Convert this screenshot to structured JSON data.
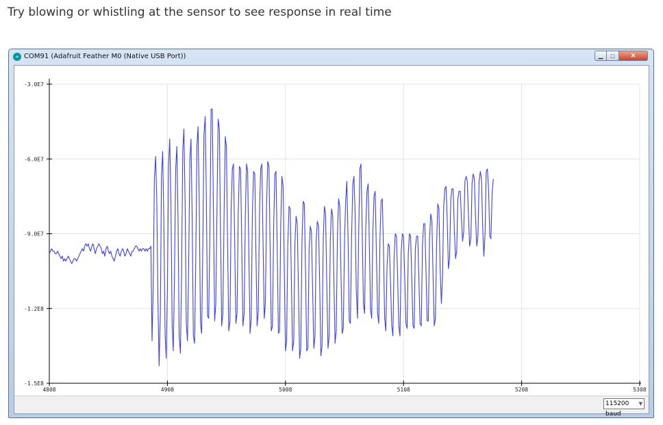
{
  "caption": "Try blowing or whistling at the sensor to see response in real time",
  "window": {
    "title": "COM91 (Adafruit Feather M0 (Native USB Port))",
    "app_icon": "arduino-icon",
    "controls": {
      "minimize": "minimize-icon",
      "maximize": "maximize-icon",
      "close": "close-icon"
    }
  },
  "bottom_bar": {
    "baud": "115200 baud"
  },
  "colors": {
    "line": "#3a3ff0",
    "grid": "#e4e4e4",
    "axis": "#000000"
  },
  "chart_data": {
    "type": "line",
    "title": "",
    "xlabel": "",
    "ylabel": "",
    "xlim": [
      4800,
      5300
    ],
    "ylim": [
      -150000000,
      -30000000
    ],
    "grid": true,
    "y_ticks": [
      {
        "value": -30000000,
        "label": "-3.0E7"
      },
      {
        "value": -60000000,
        "label": "-6.0E7"
      },
      {
        "value": -90000000,
        "label": "-9.0E7"
      },
      {
        "value": -120000000,
        "label": "-1.2E8"
      },
      {
        "value": -150000000,
        "label": "-1.5E8"
      }
    ],
    "x_ticks": [
      {
        "value": 4800,
        "label": "4808"
      },
      {
        "value": 4900,
        "label": "4908"
      },
      {
        "value": 5000,
        "label": "5008"
      },
      {
        "value": 5100,
        "label": "5108"
      },
      {
        "value": 5200,
        "label": "5208"
      },
      {
        "value": 5300,
        "label": "5308"
      }
    ],
    "series": [
      {
        "color": "#3a3ff0",
        "x_start": 4800,
        "x_step": 1,
        "values": [
          -98,
          -97,
          -96,
          -97,
          -97,
          -98,
          -98,
          -97,
          -98,
          -99,
          -100,
          -99,
          -101,
          -100,
          -101,
          -100,
          -99,
          -100,
          -101,
          -102,
          -101,
          -100,
          -100,
          -101,
          -100,
          -99,
          -98,
          -97,
          -96,
          -97,
          -95,
          -94,
          -95,
          -94,
          -96,
          -97,
          -95,
          -94,
          -96,
          -98,
          -96,
          -95,
          -94,
          -95,
          -96,
          -98,
          -97,
          -99,
          -96,
          -95,
          -97,
          -98,
          -97,
          -99,
          -100,
          -101,
          -99,
          -97,
          -96,
          -98,
          -99,
          -97,
          -96,
          -97,
          -99,
          -98,
          -96,
          -97,
          -98,
          -99,
          -97,
          -97,
          -96,
          -95,
          -95,
          -96,
          -97,
          -96,
          -97,
          -96,
          -96,
          -97,
          -96,
          -97,
          -96,
          -96,
          -95,
          -133,
          -112,
          -68,
          -59,
          -76,
          -117,
          -143,
          -122,
          -67,
          -57,
          -84,
          -130,
          -140,
          -113,
          -62,
          -52,
          -78,
          -126,
          -137,
          -108,
          -64,
          -55,
          -83,
          -131,
          -138,
          -107,
          -57,
          -48,
          -78,
          -126,
          -133,
          -104,
          -60,
          -52,
          -84,
          -131,
          -134,
          -101,
          -55,
          -47,
          -78,
          -126,
          -130,
          -96,
          -50,
          -43,
          -76,
          -123,
          -124,
          -89,
          -40,
          -40,
          -80,
          -125,
          -118,
          -80,
          -44,
          -48,
          -90,
          -127,
          -122,
          -82,
          -51,
          -55,
          -94,
          -129,
          -125,
          -80,
          -64,
          -62,
          -94,
          -126,
          -122,
          -82,
          -63,
          -64,
          -95,
          -127,
          -122,
          -83,
          -62,
          -65,
          -99,
          -130,
          -124,
          -82,
          -65,
          -66,
          -98,
          -127,
          -121,
          -81,
          -64,
          -62,
          -92,
          -124,
          -118,
          -79,
          -61,
          -63,
          -96,
          -129,
          -127,
          -87,
          -66,
          -65,
          -95,
          -130,
          -129,
          -86,
          -67,
          -71,
          -105,
          -137,
          -133,
          -94,
          -79,
          -80,
          -108,
          -137,
          -133,
          -94,
          -83,
          -86,
          -113,
          -140,
          -136,
          -93,
          -77,
          -78,
          -105,
          -137,
          -136,
          -97,
          -87,
          -89,
          -113,
          -136,
          -131,
          -93,
          -85,
          -87,
          -111,
          -139,
          -135,
          -92,
          -79,
          -82,
          -110,
          -136,
          -131,
          -92,
          -80,
          -83,
          -108,
          -134,
          -129,
          -90,
          -76,
          -79,
          -105,
          -130,
          -128,
          -93,
          -77,
          -69,
          -92,
          -125,
          -126,
          -92,
          -70,
          -67,
          -82,
          -113,
          -124,
          -90,
          -64,
          -62,
          -90,
          -118,
          -122,
          -88,
          -73,
          -70,
          -93,
          -120,
          -124,
          -89,
          -75,
          -73,
          -97,
          -122,
          -126,
          -93,
          -77,
          -76,
          -96,
          -124,
          -129,
          -103,
          -94,
          -95,
          -110,
          -127,
          -131,
          -100,
          -90,
          -91,
          -108,
          -127,
          -131,
          -97,
          -90,
          -91,
          -107,
          -126,
          -128,
          -98,
          -90,
          -91,
          -109,
          -127,
          -128,
          -96,
          -91,
          -91,
          -108,
          -126,
          -127,
          -95,
          -86,
          -86,
          -105,
          -125,
          -125,
          -92,
          -82,
          -85,
          -107,
          -127,
          -124,
          -94,
          -78,
          -80,
          -104,
          -118,
          -108,
          -79,
          -72,
          -71,
          -85,
          -104,
          -100,
          -76,
          -72,
          -72,
          -88,
          -100,
          -97,
          -76,
          -73,
          -73,
          -84,
          -93,
          -89,
          -69,
          -67,
          -69,
          -83,
          -95,
          -92,
          -70,
          -66,
          -68,
          -84,
          -95,
          -91,
          -69,
          -65,
          -68,
          -87,
          -99,
          -90,
          -65,
          -64,
          -72,
          -91,
          -92,
          -74,
          -68
        ]
      }
    ]
  }
}
